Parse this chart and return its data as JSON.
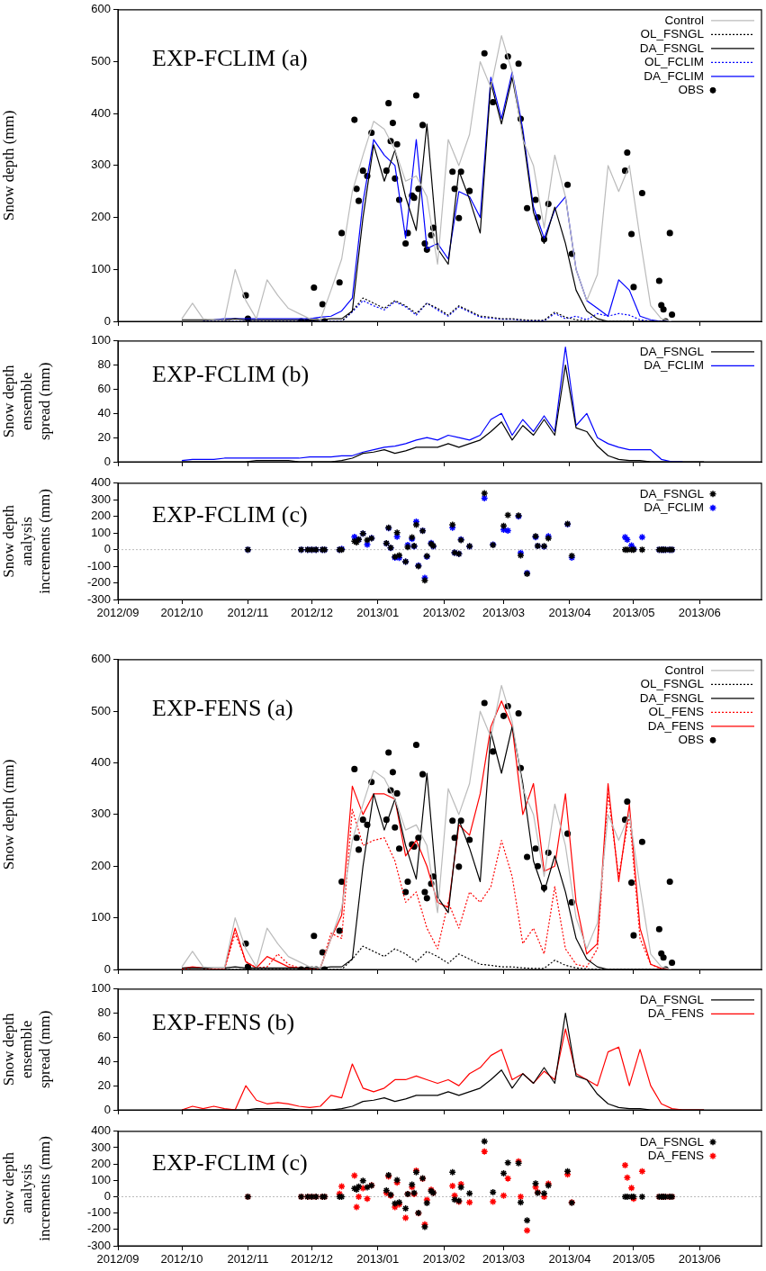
{
  "chart_data": [
    {
      "type": "line",
      "title": "EXP-FCLIM (a)",
      "ylabel": "Snow depth (mm)",
      "legend": "top right",
      "tick_labels": "y",
      "xlim": [
        "2012-09-01",
        "2013-06-30"
      ],
      "xticks": [
        {
          "value": "2012-09",
          "label": null
        },
        {
          "value": "2012-10",
          "label": null
        },
        {
          "value": "2012-11",
          "label": null
        },
        {
          "value": "2012-12",
          "label": null
        },
        {
          "value": "2013-01",
          "label": null
        },
        {
          "value": "2013-02",
          "label": null
        },
        {
          "value": "2013-03",
          "label": null
        },
        {
          "value": "2013-04",
          "label": null
        },
        {
          "value": "2013-05",
          "label": null
        },
        {
          "value": "2013-06",
          "label": null
        }
      ],
      "ylim": [
        0,
        600
      ],
      "yticks": [
        0,
        100,
        200,
        300,
        400,
        500,
        600
      ],
      "x": [
        "2012-10-01",
        "2012-10-06",
        "2012-10-11",
        "2012-10-16",
        "2012-10-21",
        "2012-10-26",
        "2012-10-31",
        "2012-11-05",
        "2012-11-10",
        "2012-11-15",
        "2012-11-20",
        "2012-11-25",
        "2012-11-30",
        "2012-12-05",
        "2012-12-10",
        "2012-12-15",
        "2012-12-20",
        "2012-12-25",
        "2012-12-30",
        "2013-01-04",
        "2013-01-09",
        "2013-01-14",
        "2013-01-19",
        "2013-01-24",
        "2013-01-29",
        "2013-02-03",
        "2013-02-08",
        "2013-02-13",
        "2013-02-18",
        "2013-02-23",
        "2013-02-28",
        "2013-03-05",
        "2013-03-10",
        "2013-03-15",
        "2013-03-20",
        "2013-03-25",
        "2013-03-30",
        "2013-04-04",
        "2013-04-09",
        "2013-04-14",
        "2013-04-19",
        "2013-04-24",
        "2013-04-29",
        "2013-05-04",
        "2013-05-09",
        "2013-05-14",
        "2013-05-19",
        "2013-05-24",
        "2013-05-29",
        "2013-06-03"
      ],
      "series": [
        {
          "name": "Control",
          "color": "#bbbbbb",
          "line_style": "solid",
          "marker": "none",
          "values": [
            5,
            35,
            5,
            3,
            3,
            100,
            40,
            5,
            80,
            50,
            25,
            15,
            5,
            3,
            60,
            120,
            250,
            320,
            385,
            370,
            330,
            270,
            280,
            240,
            110,
            350,
            300,
            360,
            500,
            450,
            550,
            480,
            350,
            300,
            180,
            320,
            240,
            100,
            40,
            90,
            300,
            250,
            300,
            160,
            30,
            5,
            0,
            0,
            0,
            0
          ]
        },
        {
          "name": "OL_FSNGL",
          "color": "#000000",
          "line_style": "dotted",
          "marker": "none",
          "values": [
            null,
            null,
            0,
            0,
            0,
            0,
            0,
            0,
            0,
            0,
            0,
            0,
            0,
            0,
            0,
            0,
            20,
            45,
            35,
            25,
            40,
            30,
            15,
            35,
            25,
            12,
            30,
            20,
            10,
            8,
            5,
            5,
            3,
            2,
            2,
            18,
            8,
            3,
            1,
            0,
            0,
            0,
            0,
            0,
            0,
            0,
            null,
            null,
            null,
            null
          ]
        },
        {
          "name": "DA_FSNGL",
          "color": "#000000",
          "line_style": "solid",
          "marker": "none",
          "values": [
            3,
            3,
            3,
            3,
            3,
            5,
            3,
            3,
            3,
            3,
            3,
            3,
            3,
            3,
            5,
            5,
            20,
            200,
            340,
            270,
            330,
            240,
            175,
            380,
            140,
            110,
            290,
            235,
            170,
            460,
            380,
            470,
            360,
            210,
            150,
            220,
            150,
            60,
            20,
            5,
            0,
            0,
            0,
            0,
            0,
            0,
            0,
            0,
            0,
            0
          ]
        },
        {
          "name": "OL_FCLIM",
          "color": "#0000ff",
          "line_style": "dotted",
          "marker": "none",
          "values": [
            null,
            null,
            0,
            0,
            0,
            0,
            0,
            0,
            0,
            0,
            0,
            0,
            0,
            0,
            0,
            0,
            18,
            40,
            30,
            22,
            38,
            28,
            12,
            35,
            22,
            10,
            28,
            18,
            8,
            6,
            4,
            4,
            2,
            1,
            1,
            15,
            5,
            10,
            3,
            15,
            10,
            15,
            12,
            3,
            0,
            0,
            null,
            null,
            null,
            null
          ]
        },
        {
          "name": "DA_FCLIM",
          "color": "#0000ff",
          "line_style": "solid",
          "marker": "none",
          "values": [
            null,
            null,
            null,
            3,
            5,
            5,
            5,
            5,
            5,
            5,
            5,
            5,
            5,
            8,
            10,
            20,
            45,
            230,
            350,
            320,
            300,
            160,
            350,
            140,
            150,
            120,
            250,
            240,
            200,
            470,
            390,
            480,
            370,
            220,
            160,
            215,
            240,
            100,
            40,
            25,
            10,
            80,
            60,
            10,
            3,
            0,
            0,
            null,
            null,
            null
          ]
        },
        {
          "name": "OBS",
          "type": "scatter",
          "color": "#000000",
          "marker": "circle",
          "x": [
            "2012-10-31",
            "2012-11-01",
            "2012-11-26",
            "2012-11-29",
            "2012-12-01",
            "2012-12-02",
            "2012-12-03",
            "2012-12-06",
            "2012-12-07",
            "2012-12-14",
            "2012-12-15",
            "2012-12-21",
            "2012-12-22",
            "2012-12-23",
            "2012-12-25",
            "2012-12-27",
            "2012-12-29",
            "2013-01-05",
            "2013-01-06",
            "2013-01-07",
            "2013-01-08",
            "2013-01-09",
            "2013-01-10",
            "2013-01-11",
            "2013-01-14",
            "2013-01-15",
            "2013-01-17",
            "2013-01-18",
            "2013-01-19",
            "2013-01-20",
            "2013-01-22",
            "2013-01-23",
            "2013-01-24",
            "2013-01-26",
            "2013-01-27",
            "2013-02-05",
            "2013-02-06",
            "2013-02-08",
            "2013-02-09",
            "2013-02-13",
            "2013-02-20",
            "2013-02-24",
            "2013-03-01",
            "2013-03-03",
            "2013-03-08",
            "2013-03-09",
            "2013-03-12",
            "2013-03-16",
            "2013-03-17",
            "2013-03-20",
            "2013-03-22",
            "2013-03-31",
            "2013-04-02",
            "2013-04-27",
            "2013-04-28",
            "2013-04-30",
            "2013-05-01",
            "2013-05-05",
            "2013-05-13",
            "2013-05-14",
            "2013-05-15",
            "2013-05-16",
            "2013-05-18",
            "2013-05-19"
          ],
          "values": [
            50,
            5,
            0,
            0,
            0,
            65,
            0,
            33,
            0,
            75,
            170,
            388,
            255,
            232,
            290,
            280,
            363,
            290,
            420,
            347,
            382,
            275,
            341,
            234,
            150,
            170,
            242,
            238,
            435,
            255,
            378,
            150,
            138,
            166,
            180,
            288,
            255,
            199,
            288,
            251,
            516,
            422,
            491,
            510,
            496,
            390,
            218,
            234,
            200,
            158,
            226,
            263,
            130,
            290,
            325,
            168,
            66,
            247,
            78,
            31,
            23,
            0,
            170,
            13
          ]
        }
      ]
    },
    {
      "type": "line",
      "title": "EXP-FCLIM (b)",
      "ylabel": "Snow depth\nensemble\nspread (mm)",
      "legend": "top right",
      "tick_labels": "y",
      "xlim": [
        "2012-09-01",
        "2013-06-30"
      ],
      "xticks": [
        {
          "value": "2012-09",
          "label": null
        },
        {
          "value": "2012-10",
          "label": null
        },
        {
          "value": "2012-11",
          "label": null
        },
        {
          "value": "2012-12",
          "label": null
        },
        {
          "value": "2013-01",
          "label": null
        },
        {
          "value": "2013-02",
          "label": null
        },
        {
          "value": "2013-03",
          "label": null
        },
        {
          "value": "2013-04",
          "label": null
        },
        {
          "value": "2013-05",
          "label": null
        },
        {
          "value": "2013-06",
          "label": null
        }
      ],
      "ylim": [
        0,
        100
      ],
      "yticks": [
        0,
        20,
        40,
        60,
        80,
        100
      ],
      "x": [
        "2012-10-01",
        "2012-10-06",
        "2012-10-11",
        "2012-10-16",
        "2012-10-21",
        "2012-10-26",
        "2012-10-31",
        "2012-11-05",
        "2012-11-10",
        "2012-11-15",
        "2012-11-20",
        "2012-11-25",
        "2012-11-30",
        "2012-12-05",
        "2012-12-10",
        "2012-12-15",
        "2012-12-20",
        "2012-12-25",
        "2012-12-30",
        "2013-01-04",
        "2013-01-09",
        "2013-01-14",
        "2013-01-19",
        "2013-01-24",
        "2013-01-29",
        "2013-02-03",
        "2013-02-08",
        "2013-02-13",
        "2013-02-18",
        "2013-02-23",
        "2013-02-28",
        "2013-03-05",
        "2013-03-10",
        "2013-03-15",
        "2013-03-20",
        "2013-03-25",
        "2013-03-30",
        "2013-04-04",
        "2013-04-09",
        "2013-04-14",
        "2013-04-19",
        "2013-04-24",
        "2013-04-29",
        "2013-05-04",
        "2013-05-09",
        "2013-05-14",
        "2013-05-19",
        "2013-05-24",
        "2013-05-29",
        "2013-06-03"
      ],
      "series": [
        {
          "name": "DA_FSNGL",
          "color": "#000000",
          "line_style": "solid",
          "marker": "none",
          "values": [
            0,
            0,
            0,
            0,
            0,
            0,
            0,
            1,
            1,
            1,
            1,
            0,
            0,
            0,
            0,
            1,
            3,
            7,
            8,
            10,
            7,
            9,
            12,
            12,
            12,
            15,
            12,
            15,
            18,
            25,
            33,
            18,
            30,
            22,
            35,
            22,
            80,
            28,
            25,
            13,
            5,
            2,
            1,
            1,
            0,
            0,
            0,
            0,
            0,
            0
          ]
        },
        {
          "name": "DA_FCLIM",
          "color": "#0000ff",
          "line_style": "solid",
          "marker": "none",
          "values": [
            1,
            2,
            2,
            2,
            3,
            3,
            3,
            3,
            3,
            3,
            3,
            3,
            4,
            4,
            4,
            5,
            5,
            8,
            10,
            12,
            13,
            15,
            18,
            20,
            18,
            22,
            20,
            18,
            22,
            35,
            40,
            22,
            35,
            25,
            38,
            25,
            95,
            30,
            40,
            20,
            15,
            12,
            10,
            10,
            10,
            2,
            0,
            0,
            null,
            null
          ]
        }
      ]
    },
    {
      "type": "scatter",
      "title": "EXP-FCLIM (c)",
      "ylabel": "Snow depth\nanalysis\nincrements (mm)",
      "legend": "top right",
      "xlim": [
        "2012-09-01",
        "2013-06-30"
      ],
      "xticks": [
        {
          "value": "2012-09",
          "label": "2012/09"
        },
        {
          "value": "2012-10",
          "label": "2012/10"
        },
        {
          "value": "2012-11",
          "label": "2012/11"
        },
        {
          "value": "2012-12",
          "label": "2012/12"
        },
        {
          "value": "2013-01",
          "label": "2013/01"
        },
        {
          "value": "2013-02",
          "label": "2013/02"
        },
        {
          "value": "2013-03",
          "label": "2013/03"
        },
        {
          "value": "2013-04",
          "label": "2013/04"
        },
        {
          "value": "2013-05",
          "label": "2013/05"
        },
        {
          "value": "2013-06",
          "label": "2013/06"
        }
      ],
      "ylim": [
        -300,
        400
      ],
      "yticks": [
        -300,
        -200,
        -100,
        0,
        100,
        200,
        300,
        400
      ],
      "ref_lines": [
        {
          "axis": "y",
          "value": 0,
          "color": "#bbbbbb",
          "line_style": "dotted"
        }
      ],
      "x": [
        "2012-11-01",
        "2012-11-26",
        "2012-11-29",
        "2012-12-01",
        "2012-12-03",
        "2012-12-06",
        "2012-12-07",
        "2012-12-14",
        "2012-12-15",
        "2012-12-21",
        "2012-12-22",
        "2012-12-23",
        "2012-12-25",
        "2012-12-27",
        "2012-12-29",
        "2013-01-05",
        "2013-01-06",
        "2013-01-07",
        "2013-01-09",
        "2013-01-10",
        "2013-01-11",
        "2013-01-14",
        "2013-01-15",
        "2013-01-17",
        "2013-01-18",
        "2013-01-19",
        "2013-01-20",
        "2013-01-22",
        "2013-01-23",
        "2013-01-24",
        "2013-01-26",
        "2013-01-27",
        "2013-02-05",
        "2013-02-06",
        "2013-02-08",
        "2013-02-09",
        "2013-02-13",
        "2013-02-20",
        "2013-02-24",
        "2013-03-01",
        "2013-03-03",
        "2013-03-08",
        "2013-03-09",
        "2013-03-12",
        "2013-03-16",
        "2013-03-17",
        "2013-03-20",
        "2013-03-22",
        "2013-03-31",
        "2013-04-02",
        "2013-04-27",
        "2013-04-28",
        "2013-04-30",
        "2013-05-01",
        "2013-05-05",
        "2013-05-13",
        "2013-05-14",
        "2013-05-15",
        "2013-05-16",
        "2013-05-18",
        "2013-05-19"
      ],
      "series": [
        {
          "name": "DA_FSNGL",
          "color": "#000000",
          "marker": "cross",
          "values": [
            0,
            0,
            0,
            0,
            0,
            0,
            0,
            0,
            0,
            51,
            44,
            62,
            97,
            58,
            69,
            39,
            132,
            12,
            -42,
            102,
            -35,
            -72,
            16,
            74,
            23,
            150,
            -99,
            113,
            -185,
            -39,
            35,
            23,
            150,
            -18,
            -25,
            58,
            21,
            339,
            28,
            143,
            208,
            205,
            -35,
            -145,
            81,
            23,
            21,
            69,
            155,
            -37,
            0,
            0,
            0,
            0,
            0,
            0,
            0,
            0,
            0,
            0,
            0
          ]
        },
        {
          "name": "DA_FCLIM",
          "color": "#0000ff",
          "marker": "cross",
          "values": [
            0,
            0,
            0,
            0,
            0,
            0,
            0,
            0,
            5,
            76,
            60,
            60,
            97,
            30,
            70,
            37,
            130,
            10,
            -48,
            78,
            -50,
            -72,
            28,
            65,
            20,
            168,
            -95,
            115,
            -170,
            -42,
            40,
            20,
            132,
            -18,
            -25,
            62,
            20,
            310,
            30,
            120,
            115,
            200,
            -20,
            -140,
            75,
            23,
            18,
            80,
            153,
            -48,
            75,
            60,
            25,
            5,
            75,
            0,
            0,
            0,
            0,
            0,
            0
          ]
        }
      ]
    },
    {
      "type": "line",
      "title": "EXP-FENS (a)",
      "ylabel": "Snow depth (mm)",
      "legend": "top right",
      "tick_labels": "y",
      "xlim": [
        "2012-09-01",
        "2013-06-30"
      ],
      "xticks": [
        {
          "value": "2012-09",
          "label": null
        },
        {
          "value": "2012-10",
          "label": null
        },
        {
          "value": "2012-11",
          "label": null
        },
        {
          "value": "2012-12",
          "label": null
        },
        {
          "value": "2013-01",
          "label": null
        },
        {
          "value": "2013-02",
          "label": null
        },
        {
          "value": "2013-03",
          "label": null
        },
        {
          "value": "2013-04",
          "label": null
        },
        {
          "value": "2013-05",
          "label": null
        },
        {
          "value": "2013-06",
          "label": null
        }
      ],
      "ylim": [
        0,
        600
      ],
      "yticks": [
        0,
        100,
        200,
        300,
        400,
        500,
        600
      ],
      "x": [
        "2012-10-01",
        "2012-10-06",
        "2012-10-11",
        "2012-10-16",
        "2012-10-21",
        "2012-10-26",
        "2012-10-31",
        "2012-11-05",
        "2012-11-10",
        "2012-11-15",
        "2012-11-20",
        "2012-11-25",
        "2012-11-30",
        "2012-12-05",
        "2012-12-10",
        "2012-12-15",
        "2012-12-20",
        "2012-12-25",
        "2012-12-30",
        "2013-01-04",
        "2013-01-09",
        "2013-01-14",
        "2013-01-19",
        "2013-01-24",
        "2013-01-29",
        "2013-02-03",
        "2013-02-08",
        "2013-02-13",
        "2013-02-18",
        "2013-02-23",
        "2013-02-28",
        "2013-03-05",
        "2013-03-10",
        "2013-03-15",
        "2013-03-20",
        "2013-03-25",
        "2013-03-30",
        "2013-04-04",
        "2013-04-09",
        "2013-04-14",
        "2013-04-19",
        "2013-04-24",
        "2013-04-29",
        "2013-05-04",
        "2013-05-09",
        "2013-05-14",
        "2013-05-19",
        "2013-05-24",
        "2013-05-29",
        "2013-06-03"
      ],
      "series": [
        {
          "name": "Control",
          "color": "#bbbbbb",
          "line_style": "solid",
          "marker": "none",
          "values": [
            5,
            35,
            5,
            3,
            3,
            100,
            40,
            5,
            80,
            50,
            25,
            15,
            5,
            3,
            60,
            120,
            250,
            320,
            385,
            370,
            330,
            270,
            280,
            240,
            110,
            350,
            300,
            360,
            500,
            450,
            550,
            480,
            350,
            300,
            180,
            320,
            240,
            100,
            40,
            90,
            300,
            250,
            300,
            160,
            30,
            5,
            0,
            0,
            0,
            0
          ]
        },
        {
          "name": "OL_FSNGL",
          "color": "#000000",
          "line_style": "dotted",
          "marker": "none",
          "values": [
            null,
            null,
            0,
            0,
            0,
            0,
            0,
            0,
            0,
            0,
            0,
            0,
            0,
            0,
            0,
            0,
            20,
            45,
            35,
            25,
            40,
            30,
            15,
            35,
            25,
            12,
            30,
            20,
            10,
            8,
            5,
            5,
            3,
            2,
            2,
            18,
            8,
            3,
            1,
            0,
            0,
            0,
            0,
            0,
            0,
            0,
            null,
            null,
            null,
            null
          ]
        },
        {
          "name": "DA_FSNGL",
          "color": "#000000",
          "line_style": "solid",
          "marker": "none",
          "values": [
            3,
            3,
            3,
            3,
            3,
            5,
            3,
            3,
            3,
            3,
            3,
            3,
            3,
            3,
            5,
            5,
            20,
            200,
            340,
            270,
            330,
            240,
            175,
            380,
            140,
            110,
            290,
            235,
            170,
            460,
            380,
            470,
            360,
            210,
            150,
            220,
            150,
            60,
            20,
            5,
            0,
            0,
            0,
            0,
            0,
            0,
            0,
            0,
            0,
            0
          ]
        },
        {
          "name": "OL_FENS",
          "color": "#ff0000",
          "line_style": "dotted",
          "marker": "none",
          "values": [
            0,
            3,
            2,
            1,
            0,
            70,
            15,
            3,
            5,
            30,
            10,
            3,
            2,
            2,
            70,
            60,
            310,
            240,
            250,
            255,
            210,
            130,
            150,
            80,
            40,
            130,
            80,
            150,
            130,
            160,
            250,
            180,
            50,
            80,
            30,
            160,
            40,
            10,
            5,
            40,
            340,
            180,
            300,
            60,
            10,
            1,
            null,
            null,
            null,
            null
          ]
        },
        {
          "name": "DA_FENS",
          "color": "#ff0000",
          "line_style": "solid",
          "marker": "none",
          "values": [
            2,
            5,
            3,
            2,
            2,
            80,
            15,
            3,
            25,
            15,
            5,
            3,
            2,
            3,
            60,
            105,
            355,
            300,
            340,
            340,
            330,
            220,
            250,
            200,
            130,
            120,
            280,
            260,
            340,
            470,
            520,
            470,
            300,
            360,
            190,
            200,
            340,
            130,
            30,
            50,
            360,
            170,
            320,
            80,
            10,
            2,
            0,
            null,
            null,
            null
          ]
        },
        {
          "name": "OBS",
          "type": "scatter",
          "color": "#000000",
          "marker": "circle",
          "x": [
            "2012-10-31",
            "2012-11-01",
            "2012-11-26",
            "2012-11-29",
            "2012-12-01",
            "2012-12-02",
            "2012-12-03",
            "2012-12-06",
            "2012-12-07",
            "2012-12-14",
            "2012-12-15",
            "2012-12-21",
            "2012-12-22",
            "2012-12-23",
            "2012-12-25",
            "2012-12-27",
            "2012-12-29",
            "2013-01-05",
            "2013-01-06",
            "2013-01-07",
            "2013-01-08",
            "2013-01-09",
            "2013-01-10",
            "2013-01-11",
            "2013-01-14",
            "2013-01-15",
            "2013-01-17",
            "2013-01-18",
            "2013-01-19",
            "2013-01-20",
            "2013-01-22",
            "2013-01-23",
            "2013-01-24",
            "2013-01-26",
            "2013-01-27",
            "2013-02-05",
            "2013-02-06",
            "2013-02-08",
            "2013-02-09",
            "2013-02-13",
            "2013-02-20",
            "2013-02-24",
            "2013-03-01",
            "2013-03-03",
            "2013-03-08",
            "2013-03-09",
            "2013-03-12",
            "2013-03-16",
            "2013-03-17",
            "2013-03-20",
            "2013-03-22",
            "2013-03-31",
            "2013-04-02",
            "2013-04-27",
            "2013-04-28",
            "2013-04-30",
            "2013-05-01",
            "2013-05-05",
            "2013-05-13",
            "2013-05-14",
            "2013-05-15",
            "2013-05-16",
            "2013-05-18",
            "2013-05-19"
          ],
          "values": [
            50,
            5,
            0,
            0,
            0,
            65,
            0,
            33,
            0,
            75,
            170,
            388,
            255,
            232,
            290,
            280,
            363,
            290,
            420,
            347,
            382,
            275,
            341,
            234,
            150,
            170,
            242,
            238,
            435,
            255,
            378,
            150,
            138,
            166,
            180,
            288,
            255,
            199,
            288,
            251,
            516,
            422,
            491,
            510,
            496,
            390,
            218,
            234,
            200,
            158,
            226,
            263,
            130,
            290,
            325,
            168,
            66,
            247,
            78,
            31,
            23,
            0,
            170,
            13
          ]
        }
      ]
    },
    {
      "type": "line",
      "title": "EXP-FENS (b)",
      "ylabel": "Snow depth\nensemble\nspread (mm)",
      "legend": "top right",
      "tick_labels": "y",
      "xlim": [
        "2012-09-01",
        "2013-06-30"
      ],
      "xticks": [
        {
          "value": "2012-09",
          "label": null
        },
        {
          "value": "2012-10",
          "label": null
        },
        {
          "value": "2012-11",
          "label": null
        },
        {
          "value": "2012-12",
          "label": null
        },
        {
          "value": "2013-01",
          "label": null
        },
        {
          "value": "2013-02",
          "label": null
        },
        {
          "value": "2013-03",
          "label": null
        },
        {
          "value": "2013-04",
          "label": null
        },
        {
          "value": "2013-05",
          "label": null
        },
        {
          "value": "2013-06",
          "label": null
        }
      ],
      "ylim": [
        0,
        100
      ],
      "yticks": [
        0,
        20,
        40,
        60,
        80,
        100
      ],
      "x": [
        "2012-10-01",
        "2012-10-06",
        "2012-10-11",
        "2012-10-16",
        "2012-10-21",
        "2012-10-26",
        "2012-10-31",
        "2012-11-05",
        "2012-11-10",
        "2012-11-15",
        "2012-11-20",
        "2012-11-25",
        "2012-11-30",
        "2012-12-05",
        "2012-12-10",
        "2012-12-15",
        "2012-12-20",
        "2012-12-25",
        "2012-12-30",
        "2013-01-04",
        "2013-01-09",
        "2013-01-14",
        "2013-01-19",
        "2013-01-24",
        "2013-01-29",
        "2013-02-03",
        "2013-02-08",
        "2013-02-13",
        "2013-02-18",
        "2013-02-23",
        "2013-02-28",
        "2013-03-05",
        "2013-03-10",
        "2013-03-15",
        "2013-03-20",
        "2013-03-25",
        "2013-03-30",
        "2013-04-04",
        "2013-04-09",
        "2013-04-14",
        "2013-04-19",
        "2013-04-24",
        "2013-04-29",
        "2013-05-04",
        "2013-05-09",
        "2013-05-14",
        "2013-05-19",
        "2013-05-24",
        "2013-05-29",
        "2013-06-03"
      ],
      "series": [
        {
          "name": "DA_FSNGL",
          "color": "#000000",
          "line_style": "solid",
          "marker": "none",
          "values": [
            0,
            0,
            0,
            0,
            0,
            0,
            0,
            1,
            1,
            1,
            1,
            0,
            0,
            0,
            0,
            1,
            3,
            7,
            8,
            10,
            7,
            9,
            12,
            12,
            12,
            15,
            12,
            15,
            18,
            25,
            33,
            18,
            30,
            22,
            35,
            22,
            80,
            28,
            25,
            13,
            5,
            2,
            1,
            1,
            0,
            0,
            0,
            0,
            0,
            0
          ]
        },
        {
          "name": "DA_FENS",
          "color": "#ff0000",
          "line_style": "solid",
          "marker": "none",
          "values": [
            0,
            3,
            1,
            3,
            1,
            0,
            20,
            8,
            5,
            6,
            5,
            3,
            2,
            3,
            12,
            10,
            38,
            18,
            15,
            18,
            25,
            25,
            28,
            25,
            22,
            25,
            20,
            30,
            35,
            45,
            50,
            25,
            30,
            22,
            32,
            25,
            67,
            30,
            25,
            20,
            48,
            52,
            20,
            50,
            20,
            5,
            1,
            0,
            0,
            0
          ]
        }
      ]
    },
    {
      "type": "scatter",
      "title": "EXP-FCLIM (c)",
      "ylabel": "Snow depth\nanalysis\nincrements (mm)",
      "legend": "top right",
      "xlim": [
        "2012-09-01",
        "2013-06-30"
      ],
      "xticks": [
        {
          "value": "2012-09",
          "label": "2012/09"
        },
        {
          "value": "2012-10",
          "label": "2012/10"
        },
        {
          "value": "2012-11",
          "label": "2012/11"
        },
        {
          "value": "2012-12",
          "label": "2012/12"
        },
        {
          "value": "2013-01",
          "label": "2013/01"
        },
        {
          "value": "2013-02",
          "label": "2013/02"
        },
        {
          "value": "2013-03",
          "label": "2013/03"
        },
        {
          "value": "2013-04",
          "label": "2013/04"
        },
        {
          "value": "2013-05",
          "label": "2013/05"
        },
        {
          "value": "2013-06",
          "label": "2013/06"
        }
      ],
      "ylim": [
        -300,
        400
      ],
      "yticks": [
        -300,
        -200,
        -100,
        0,
        100,
        200,
        300,
        400
      ],
      "ref_lines": [
        {
          "axis": "y",
          "value": 0,
          "color": "#bbbbbb",
          "line_style": "dotted"
        }
      ],
      "x": [
        "2012-11-01",
        "2012-11-26",
        "2012-11-29",
        "2012-12-01",
        "2012-12-03",
        "2012-12-06",
        "2012-12-07",
        "2012-12-14",
        "2012-12-15",
        "2012-12-21",
        "2012-12-22",
        "2012-12-23",
        "2012-12-25",
        "2012-12-27",
        "2012-12-29",
        "2013-01-05",
        "2013-01-06",
        "2013-01-07",
        "2013-01-09",
        "2013-01-10",
        "2013-01-11",
        "2013-01-14",
        "2013-01-15",
        "2013-01-17",
        "2013-01-18",
        "2013-01-19",
        "2013-01-20",
        "2013-01-22",
        "2013-01-23",
        "2013-01-24",
        "2013-01-26",
        "2013-01-27",
        "2013-02-05",
        "2013-02-06",
        "2013-02-08",
        "2013-02-09",
        "2013-02-13",
        "2013-02-20",
        "2013-02-24",
        "2013-03-01",
        "2013-03-03",
        "2013-03-08",
        "2013-03-09",
        "2013-03-12",
        "2013-03-16",
        "2013-03-17",
        "2013-03-20",
        "2013-03-22",
        "2013-03-31",
        "2013-04-02",
        "2013-04-27",
        "2013-04-28",
        "2013-04-30",
        "2013-05-01",
        "2013-05-05",
        "2013-05-13",
        "2013-05-14",
        "2013-05-15",
        "2013-05-16",
        "2013-05-18",
        "2013-05-19"
      ],
      "series": [
        {
          "name": "DA_FSNGL",
          "color": "#000000",
          "marker": "cross",
          "values": [
            0,
            0,
            0,
            0,
            0,
            0,
            0,
            0,
            0,
            51,
            44,
            62,
            97,
            58,
            69,
            39,
            132,
            12,
            -42,
            102,
            -35,
            -72,
            16,
            74,
            23,
            150,
            -99,
            113,
            -185,
            -39,
            35,
            23,
            150,
            -18,
            -25,
            58,
            21,
            339,
            28,
            143,
            208,
            205,
            -35,
            -145,
            81,
            23,
            21,
            69,
            155,
            -37,
            0,
            0,
            0,
            0,
            0,
            0,
            0,
            0,
            0,
            0,
            0
          ]
        },
        {
          "name": "DA_FENS",
          "color": "#ff0000",
          "marker": "cross",
          "values": [
            0,
            0,
            0,
            0,
            0,
            0,
            0,
            18,
            63,
            129,
            -63,
            0,
            52,
            -12,
            70,
            23,
            124,
            7,
            -63,
            87,
            -47,
            -129,
            16,
            59,
            16,
            159,
            -101,
            110,
            -169,
            -20,
            42,
            23,
            66,
            7,
            -30,
            77,
            -35,
            277,
            -30,
            7,
            112,
            216,
            0,
            -206,
            59,
            28,
            0,
            80,
            136,
            -35,
            192,
            117,
            54,
            -12,
            155,
            0,
            0,
            0,
            0,
            0,
            0
          ]
        }
      ]
    }
  ]
}
